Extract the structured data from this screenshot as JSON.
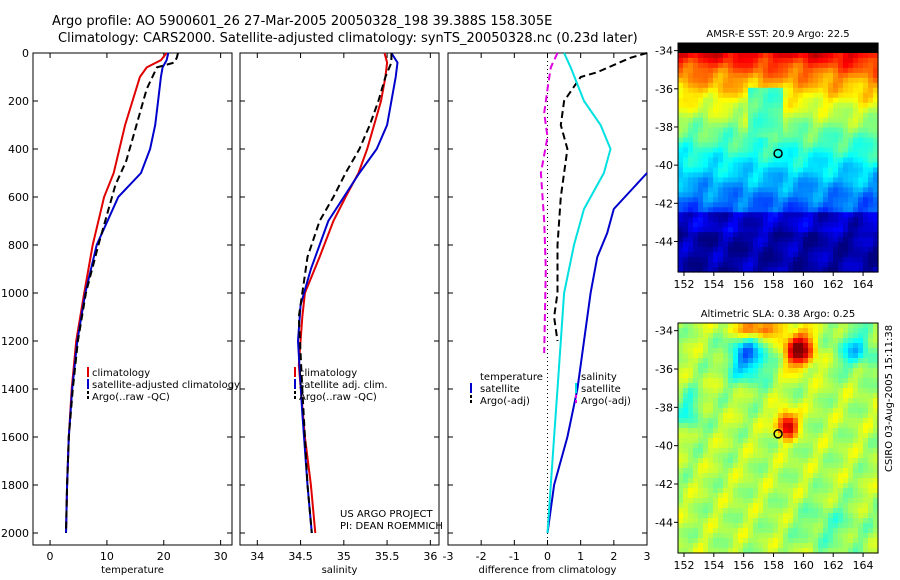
{
  "header": {
    "title_line1": "Argo profile: AO 5900601_26 27-Mar-2005 20050328_198 39.388S 158.305E",
    "title_line2": "Climatology: CARS2000. Satellite-adjusted climatology: synTS_20050328.nc (0.23d later)"
  },
  "side_label": "CSIRO 03-Aug-2005 15:11:38",
  "colors": {
    "red": "#e00000",
    "blue": "#0000cc",
    "black": "#000000",
    "cyan": "#00e0e0",
    "magenta": "#e000e0"
  },
  "chart_data": [
    {
      "type": "line",
      "id": "temperature",
      "xlabel": "temperature",
      "ylabel": "",
      "xlim": [
        -3,
        32
      ],
      "ylim": [
        0,
        2050
      ],
      "y_reversed": true,
      "xticks": [
        0,
        10,
        20,
        30
      ],
      "yticks": [
        0,
        200,
        400,
        600,
        800,
        1000,
        1200,
        1400,
        1600,
        1800,
        2000
      ],
      "legend_position": "lower-right",
      "series": [
        {
          "name": "climatology",
          "color": "red",
          "dash": false,
          "x": [
            20.5,
            19.5,
            17.0,
            15.8,
            14.5,
            13.2,
            12.2,
            11.2,
            9.5,
            7.5,
            6.0,
            4.6,
            3.8,
            3.3,
            3.0,
            2.8
          ],
          "y": [
            0,
            30,
            60,
            100,
            200,
            300,
            400,
            500,
            600,
            800,
            1000,
            1200,
            1400,
            1600,
            1800,
            2000
          ]
        },
        {
          "name": "satellite-adjusted climatology",
          "color": "blue",
          "dash": false,
          "x": [
            20.8,
            20.5,
            19.8,
            19.5,
            19.0,
            18.5,
            17.6,
            16.0,
            12.0,
            8.2,
            6.2,
            4.8,
            3.9,
            3.3,
            3.0,
            2.8
          ],
          "y": [
            0,
            30,
            60,
            100,
            200,
            300,
            400,
            500,
            600,
            800,
            1000,
            1200,
            1400,
            1600,
            1800,
            2000
          ]
        },
        {
          "name": "Argo(..raw -QC)",
          "color": "black",
          "dash": true,
          "x": [
            22.5,
            22.3,
            21.8,
            18.8,
            17.0,
            15.8,
            14.6,
            13.4,
            11.5,
            8.5,
            6.3,
            4.9,
            4.0,
            3.3,
            3.0,
            2.8
          ],
          "y": [
            0,
            20,
            40,
            60,
            150,
            250,
            350,
            450,
            550,
            800,
            1000,
            1200,
            1400,
            1600,
            1800,
            2000
          ]
        }
      ],
      "legend": [
        "climatology",
        "satellite-adjusted climatology",
        "Argo(..raw -QC)"
      ]
    },
    {
      "type": "line",
      "id": "salinity",
      "xlabel": "salinity",
      "ylabel": "",
      "xlim": [
        33.8,
        36.1
      ],
      "ylim": [
        0,
        2050
      ],
      "y_reversed": true,
      "xticks": [
        34,
        34.5,
        35,
        35.5,
        36
      ],
      "legend_position": "lower-right",
      "annotation_line1": "US ARGO PROJECT",
      "annotation_line2": "PI: DEAN ROEMMICH",
      "series": [
        {
          "name": "climatology",
          "color": "red",
          "dash": false,
          "x": [
            35.47,
            35.5,
            35.48,
            35.43,
            35.35,
            35.27,
            35.17,
            35.02,
            34.88,
            34.72,
            34.55,
            34.52,
            34.48,
            34.55,
            34.62,
            34.67
          ],
          "y": [
            0,
            40,
            100,
            200,
            300,
            400,
            500,
            600,
            700,
            850,
            1000,
            1100,
            1300,
            1600,
            1800,
            2000
          ]
        },
        {
          "name": "satellite adj. clim.",
          "color": "blue",
          "dash": false,
          "x": [
            35.55,
            35.62,
            35.6,
            35.55,
            35.5,
            35.38,
            35.18,
            35.0,
            34.82,
            34.62,
            34.5,
            34.47,
            34.52,
            34.58,
            34.63
          ],
          "y": [
            0,
            40,
            100,
            200,
            300,
            400,
            500,
            600,
            700,
            900,
            1050,
            1200,
            1500,
            1800,
            2000
          ]
        },
        {
          "name": "Argo(..raw -QC)",
          "color": "black",
          "dash": true,
          "x": [
            35.55,
            35.55,
            35.48,
            35.4,
            35.3,
            35.18,
            35.02,
            34.88,
            34.72,
            34.58,
            34.52,
            34.48,
            34.52,
            34.58,
            34.63
          ],
          "y": [
            0,
            40,
            100,
            200,
            300,
            400,
            500,
            600,
            700,
            850,
            1000,
            1100,
            1400,
            1800,
            2000
          ]
        }
      ],
      "legend": [
        "climatology",
        "satellite adj. clim.",
        "Argo(..raw -QC)"
      ]
    },
    {
      "type": "line",
      "id": "difference",
      "xlabel": "difference from climatology",
      "ylabel": "",
      "xlim": [
        -3,
        3
      ],
      "ylim": [
        0,
        2050
      ],
      "y_reversed": true,
      "xticks": [
        -3,
        -2,
        -1,
        0,
        1,
        2,
        3
      ],
      "legend_position": "lower-center",
      "series": [
        {
          "name": "temperature satellite",
          "color": "blue",
          "dash": false,
          "x": [
            3.0,
            2.0,
            1.8,
            1.5,
            1.3,
            1.1,
            0.9,
            0.6,
            0.2,
            0.0
          ],
          "y": [
            500,
            650,
            750,
            850,
            1000,
            1200,
            1400,
            1600,
            1800,
            2000
          ]
        },
        {
          "name": "temperature Argo(-adj)",
          "color": "black",
          "dash": true,
          "x": [
            3.0,
            2.5,
            1.5,
            1.0,
            0.5,
            0.4,
            0.6,
            0.5,
            0.4,
            0.3,
            0.3,
            0.2,
            0.3
          ],
          "y": [
            0,
            20,
            80,
            100,
            200,
            300,
            400,
            500,
            600,
            800,
            1000,
            1100,
            1200
          ]
        },
        {
          "name": "salinity satellite",
          "color": "cyan",
          "dash": false,
          "x": [
            0.5,
            0.7,
            1.1,
            1.6,
            1.9,
            1.7,
            1.1,
            0.8,
            0.5,
            0.4,
            0.3,
            0.2,
            0.1,
            0.0
          ],
          "y": [
            0,
            60,
            200,
            300,
            400,
            500,
            650,
            800,
            1000,
            1200,
            1400,
            1600,
            1800,
            2000
          ]
        },
        {
          "name": "salinity Argo(-adj)",
          "color": "magenta",
          "dash": true,
          "x": [
            0.3,
            0.1,
            0.0,
            -0.1,
            0.0,
            -0.2,
            -0.1,
            -0.05,
            -0.1
          ],
          "y": [
            0,
            60,
            150,
            250,
            350,
            500,
            700,
            900,
            1250
          ]
        }
      ],
      "legend_left": [
        "temperature",
        "satellite",
        "Argo(-adj)"
      ],
      "legend_right": [
        "salinity",
        "satellite",
        "Argo(-adj)"
      ]
    },
    {
      "type": "heatmap",
      "id": "sst_map",
      "title": "AMSR-E SST: 20.9 Argo: 22.5",
      "xlim": [
        151.6,
        165.0
      ],
      "ylim": [
        -45.6,
        -33.6
      ],
      "xticks": [
        152,
        154,
        156,
        158,
        160,
        162,
        164
      ],
      "yticks": [
        -34,
        -36,
        -38,
        -40,
        -42,
        -44
      ],
      "marker": {
        "lon": 158.305,
        "lat": -39.388
      },
      "colorscale": "jet"
    },
    {
      "type": "heatmap",
      "id": "sla_map",
      "title": "Altimetric SLA: 0.38 Argo: 0.25",
      "xlim": [
        151.6,
        165.0
      ],
      "ylim": [
        -45.6,
        -33.6
      ],
      "xticks": [
        152,
        154,
        156,
        158,
        160,
        162,
        164
      ],
      "yticks": [
        -34,
        -36,
        -38,
        -40,
        -42,
        -44
      ],
      "marker": {
        "lon": 158.305,
        "lat": -39.388
      },
      "colorscale": "jet"
    }
  ]
}
